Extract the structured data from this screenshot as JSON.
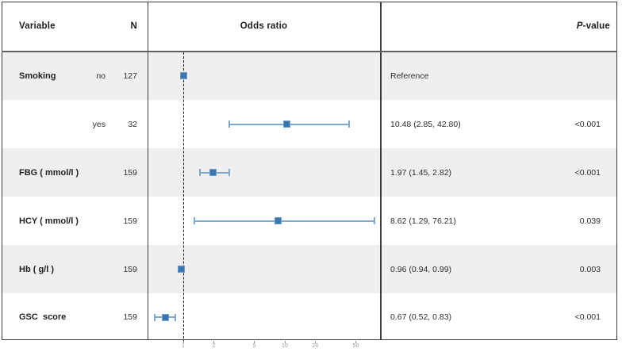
{
  "header": {
    "variable": "Variable",
    "n": "N",
    "odds_ratio": "Odds ratio",
    "p_italic": "P",
    "p_rest": "-value"
  },
  "colors": {
    "stripe": "#efefef",
    "marker_fill": "#3b76b1",
    "marker_border": "#6f9fcd",
    "ci_line": "#7ea9d4",
    "reference_line": "#1e1e1e",
    "frame_border": "#3d3d3d",
    "tick_label": "#9a9a9a"
  },
  "chart_data": {
    "type": "scatter",
    "subtype": "forest-plot",
    "x_scale": "log10",
    "x_ticks": [
      1,
      2,
      5,
      10,
      20,
      50
    ],
    "x_range": [
      0.45,
      110
    ],
    "reference_line_x": 1,
    "legend": "none",
    "grid": "off",
    "rows": [
      {
        "variable": "Smoking",
        "level": "no",
        "n": "127",
        "or": 1.0,
        "ci_low": null,
        "ci_high": null,
        "estimate": "Reference",
        "p": ""
      },
      {
        "variable": "",
        "level": "yes",
        "n": "32",
        "or": 10.48,
        "ci_low": 2.85,
        "ci_high": 42.8,
        "estimate": "10.48 (2.85, 42.80)",
        "p": "<0.001"
      },
      {
        "variable": "FBG ( mmol/l )",
        "level": "",
        "n": "159",
        "or": 1.97,
        "ci_low": 1.45,
        "ci_high": 2.82,
        "estimate": "1.97 (1.45, 2.82)",
        "p": "<0.001"
      },
      {
        "variable": "HCY ( mmol/l )",
        "level": "",
        "n": "159",
        "or": 8.62,
        "ci_low": 1.29,
        "ci_high": 76.21,
        "estimate": "8.62 (1.29, 76.21)",
        "p": "0.039"
      },
      {
        "variable": "Hb ( g/l )",
        "level": "",
        "n": "159",
        "or": 0.96,
        "ci_low": 0.94,
        "ci_high": 0.99,
        "estimate": "0.96 (0.94, 0.99)",
        "p": "0.003"
      },
      {
        "variable": "GSC  score",
        "level": "",
        "n": "159",
        "or": 0.67,
        "ci_low": 0.52,
        "ci_high": 0.83,
        "estimate": "0.67 (0.52, 0.83)",
        "p": "<0.001"
      }
    ]
  }
}
